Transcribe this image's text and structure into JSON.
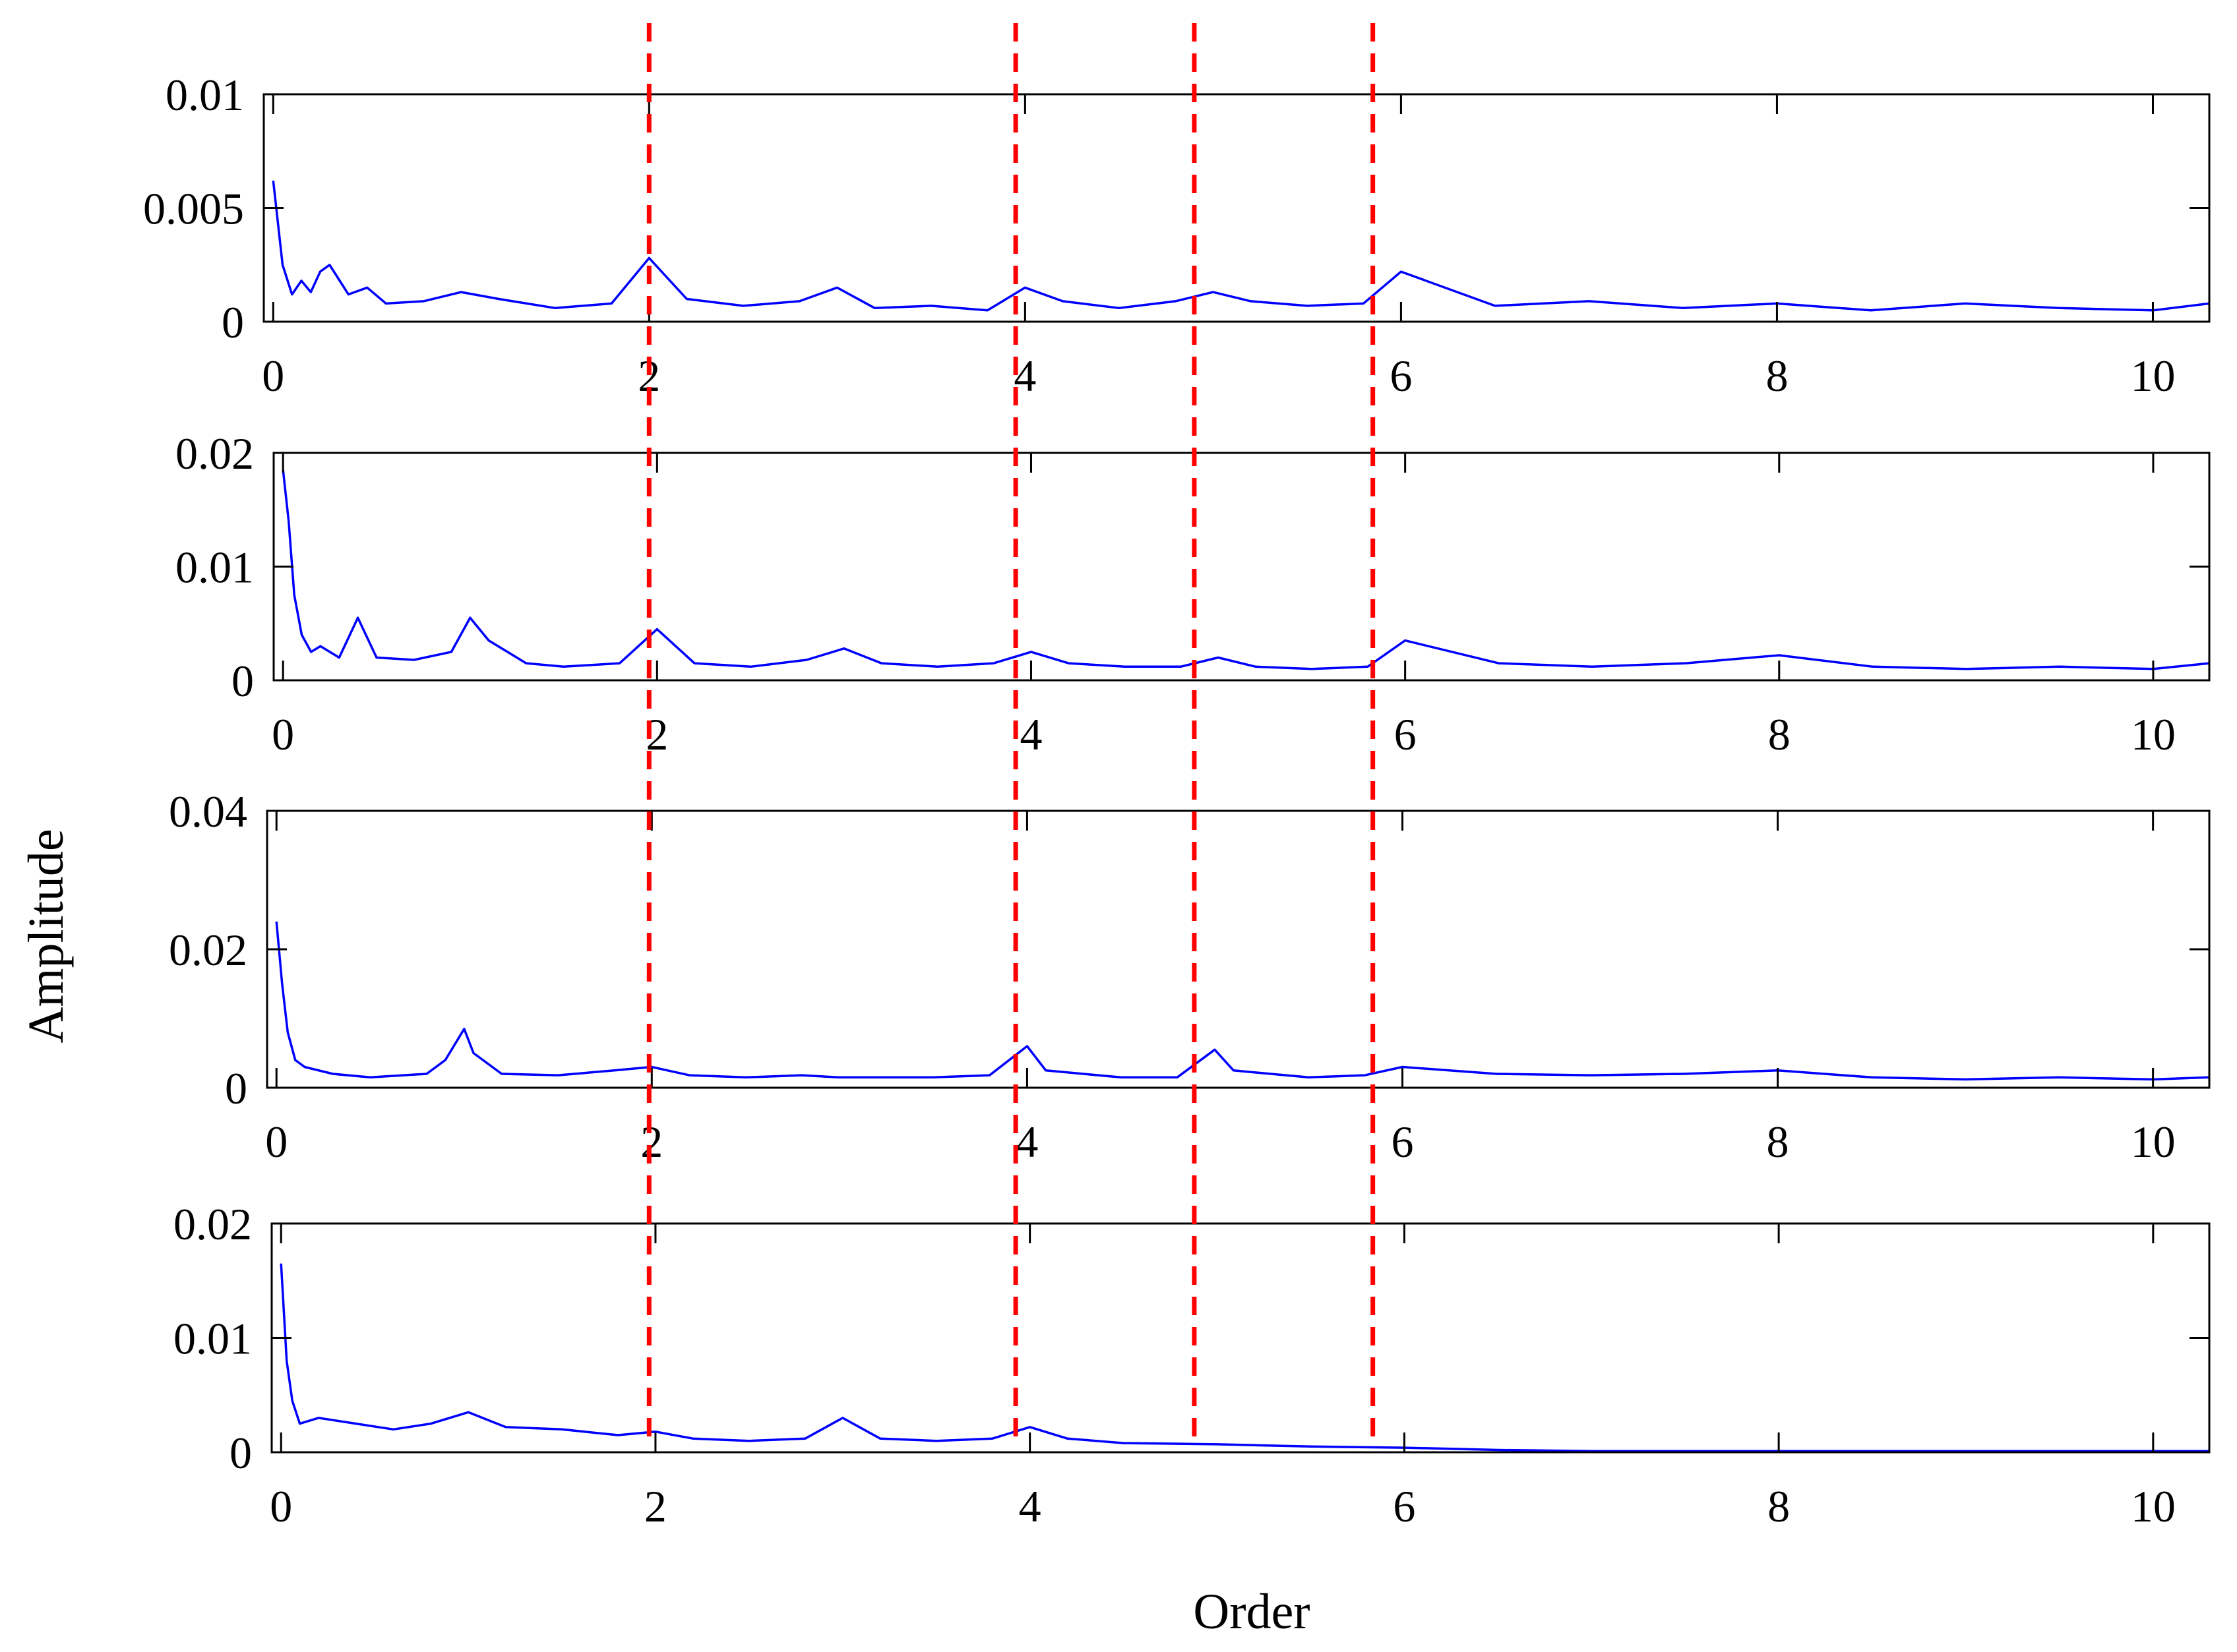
{
  "figure": {
    "xlabel": "Order",
    "ylabel": "Amplitude"
  },
  "colors": {
    "series": "#0000ff",
    "marker": "#ff0000",
    "axes": "#000000"
  },
  "chart_data": [
    {
      "type": "line",
      "xlim": [
        -0.05,
        10.3
      ],
      "ylim": [
        0,
        0.01
      ],
      "xticks": [
        "0",
        "2",
        "4",
        "6",
        "8",
        "10"
      ],
      "yticks": [
        "0",
        "0.005",
        "0.01"
      ],
      "series": [
        {
          "x": [
            0,
            0.05,
            0.1,
            0.15,
            0.2,
            0.25,
            0.3,
            0.4,
            0.5,
            0.6,
            0.8,
            1.0,
            1.2,
            1.5,
            1.8,
            2.0,
            2.2,
            2.5,
            2.8,
            3.0,
            3.2,
            3.5,
            3.8,
            4.0,
            4.2,
            4.5,
            4.8,
            5.0,
            5.2,
            5.5,
            5.8,
            6.0,
            6.5,
            7.0,
            7.5,
            8.0,
            8.5,
            9.0,
            9.5,
            10.0,
            10.3
          ],
          "y": [
            0.0062,
            0.0025,
            0.0012,
            0.0018,
            0.0013,
            0.0022,
            0.0025,
            0.0012,
            0.0015,
            0.0008,
            0.0009,
            0.0013,
            0.001,
            0.0006,
            0.0008,
            0.0028,
            0.001,
            0.0007,
            0.0009,
            0.0015,
            0.0006,
            0.0007,
            0.0005,
            0.0015,
            0.0009,
            0.0006,
            0.0009,
            0.0013,
            0.0009,
            0.0007,
            0.0008,
            0.0022,
            0.0007,
            0.0009,
            0.0006,
            0.0008,
            0.0005,
            0.0008,
            0.0006,
            0.0005,
            0.0008
          ]
        }
      ]
    },
    {
      "type": "line",
      "xlim": [
        -0.05,
        10.3
      ],
      "ylim": [
        0,
        0.02
      ],
      "xticks": [
        "0",
        "2",
        "4",
        "6",
        "8",
        "10"
      ],
      "yticks": [
        "0",
        "0.01",
        "0.02"
      ],
      "series": [
        {
          "x": [
            0,
            0.03,
            0.06,
            0.1,
            0.15,
            0.2,
            0.3,
            0.4,
            0.5,
            0.7,
            0.9,
            1.0,
            1.1,
            1.3,
            1.5,
            1.8,
            2.0,
            2.2,
            2.5,
            2.8,
            3.0,
            3.2,
            3.5,
            3.8,
            4.0,
            4.2,
            4.5,
            4.8,
            5.0,
            5.2,
            5.5,
            5.8,
            6.0,
            6.5,
            7.0,
            7.5,
            8.0,
            8.5,
            9.0,
            9.5,
            10.0,
            10.3
          ],
          "y": [
            0.0185,
            0.014,
            0.0075,
            0.004,
            0.0025,
            0.003,
            0.002,
            0.0055,
            0.002,
            0.0018,
            0.0025,
            0.0055,
            0.0035,
            0.0015,
            0.0012,
            0.0015,
            0.0045,
            0.0015,
            0.0012,
            0.0018,
            0.0028,
            0.0015,
            0.0012,
            0.0015,
            0.0025,
            0.0015,
            0.0012,
            0.0012,
            0.002,
            0.0012,
            0.001,
            0.0012,
            0.0035,
            0.0015,
            0.0012,
            0.0015,
            0.0022,
            0.0012,
            0.001,
            0.0012,
            0.001,
            0.0015
          ]
        }
      ]
    },
    {
      "type": "line",
      "xlim": [
        -0.05,
        10.3
      ],
      "ylim": [
        0,
        0.04
      ],
      "xticks": [
        "0",
        "2",
        "4",
        "6",
        "8",
        "10"
      ],
      "yticks": [
        "0",
        "0.02",
        "0.04"
      ],
      "series": [
        {
          "x": [
            0,
            0.03,
            0.06,
            0.1,
            0.15,
            0.3,
            0.5,
            0.8,
            0.9,
            1.0,
            1.05,
            1.2,
            1.5,
            1.8,
            2.0,
            2.2,
            2.5,
            2.8,
            3.0,
            3.2,
            3.5,
            3.8,
            4.0,
            4.1,
            4.5,
            4.8,
            5.0,
            5.1,
            5.5,
            5.8,
            6.0,
            6.5,
            7.0,
            7.5,
            8.0,
            8.5,
            9.0,
            9.5,
            10.0,
            10.3
          ],
          "y": [
            0.024,
            0.015,
            0.008,
            0.004,
            0.003,
            0.002,
            0.0015,
            0.002,
            0.004,
            0.0085,
            0.005,
            0.002,
            0.0018,
            0.0025,
            0.003,
            0.0018,
            0.0015,
            0.0018,
            0.0015,
            0.0015,
            0.0015,
            0.0018,
            0.006,
            0.0025,
            0.0015,
            0.0015,
            0.0055,
            0.0025,
            0.0015,
            0.0018,
            0.003,
            0.002,
            0.0018,
            0.002,
            0.0025,
            0.0015,
            0.0012,
            0.0015,
            0.0012,
            0.0015
          ]
        }
      ]
    },
    {
      "type": "line",
      "xlim": [
        -0.05,
        10.3
      ],
      "ylim": [
        0,
        0.02
      ],
      "xticks": [
        "0",
        "2",
        "4",
        "6",
        "8",
        "10"
      ],
      "yticks": [
        "0",
        "0.01",
        "0.02"
      ],
      "series": [
        {
          "x": [
            0,
            0.03,
            0.06,
            0.1,
            0.2,
            0.4,
            0.6,
            0.8,
            1.0,
            1.2,
            1.5,
            1.8,
            2.0,
            2.2,
            2.5,
            2.8,
            3.0,
            3.2,
            3.5,
            3.8,
            4.0,
            4.2,
            4.5,
            5.0,
            5.5,
            6.0,
            6.5,
            7.0,
            8.0,
            9.0,
            10.0,
            10.3
          ],
          "y": [
            0.0165,
            0.008,
            0.0045,
            0.0025,
            0.003,
            0.0025,
            0.002,
            0.0025,
            0.0035,
            0.0022,
            0.002,
            0.0015,
            0.0018,
            0.0012,
            0.001,
            0.0012,
            0.003,
            0.0012,
            0.001,
            0.0012,
            0.0022,
            0.0012,
            0.0008,
            0.0007,
            0.0005,
            0.0004,
            0.0002,
            0.0001,
            0.0001,
            0.0001,
            0.0001,
            0.0001
          ]
        }
      ]
    }
  ],
  "markers": [
    2.0,
    3.95,
    4.9,
    5.85
  ]
}
